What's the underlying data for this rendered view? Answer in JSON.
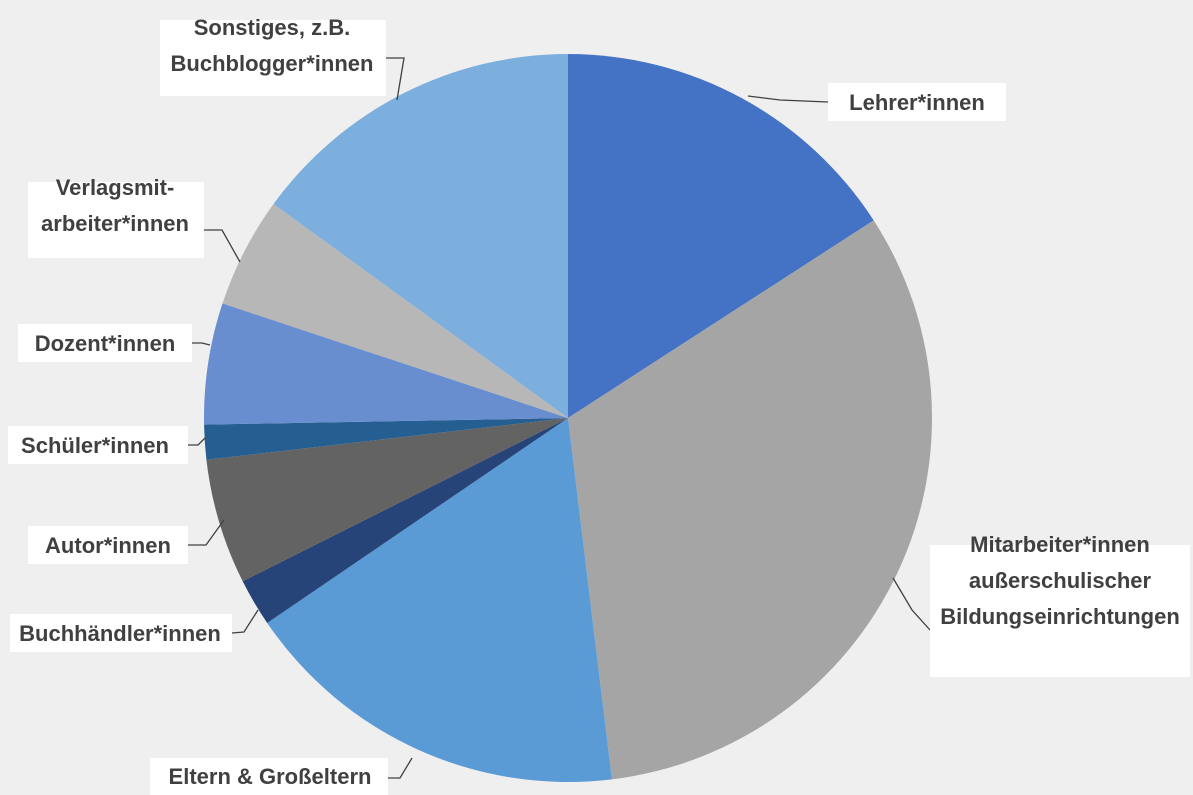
{
  "chart_data": {
    "type": "pie",
    "title": "",
    "slices": [
      {
        "label": "Lehrer*innen",
        "value": 16.5,
        "color": "#4472c4"
      },
      {
        "label": "Mitarbeiter*innen außerschulischer Bildungseinrichtungen",
        "label_lines": [
          "Mitarbeiter*innen",
          "außerschulischer",
          "Bildungseinrichtungen"
        ],
        "value": 33.5,
        "color": "#a5a5a5"
      },
      {
        "label": "Eltern & Großeltern",
        "value": 18.1,
        "color": "#5b9bd5"
      },
      {
        "label": "Buchhändler*innen",
        "value": 2.2,
        "color": "#264478"
      },
      {
        "label": "Autor*innen",
        "value": 5.8,
        "color": "#636363"
      },
      {
        "label": "Schüler*innen",
        "value": 1.6,
        "color": "#255e91"
      },
      {
        "label": "Dozent*innen",
        "value": 5.6,
        "color": "#698ed0"
      },
      {
        "label": "Verlagsmit-arbeiter*innen",
        "label_lines": [
          "Verlagsmit-",
          "arbeiter*innen"
        ],
        "value": 5.1,
        "color": "#b7b7b7"
      },
      {
        "label": "Sonstiges, z.B. Buchblogger*innen",
        "label_lines": [
          "Sonstiges, z.B.",
          "Buchblogger*innen"
        ],
        "value": 15.6,
        "color": "#7cafdd"
      }
    ],
    "start_angle_deg": 0,
    "direction": "clockwise",
    "legend": "none",
    "data_labels": "category names outside with leader lines"
  }
}
